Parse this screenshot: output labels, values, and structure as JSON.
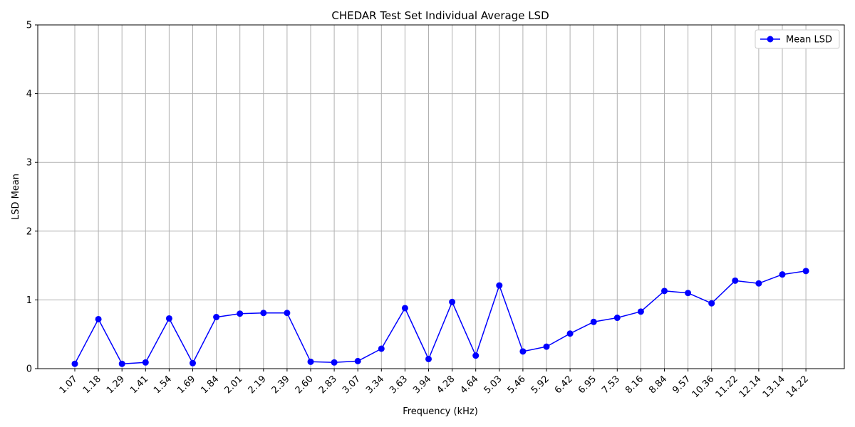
{
  "chart_data": {
    "type": "line",
    "title": "CHEDAR Test Set Individual Average LSD",
    "xlabel": "Frequency (kHz)",
    "ylabel": "LSD Mean",
    "categories": [
      "1.07",
      "1.18",
      "1.29",
      "1.41",
      "1.54",
      "1.69",
      "1.84",
      "2.01",
      "2.19",
      "2.39",
      "2.60",
      "2.83",
      "3.07",
      "3.34",
      "3.63",
      "3.94",
      "4.28",
      "4.64",
      "5.03",
      "5.46",
      "5.92",
      "6.42",
      "6.95",
      "7.53",
      "8.16",
      "8.84",
      "9.57",
      "10.36",
      "11.22",
      "12.14",
      "13.14",
      "14.22"
    ],
    "series": [
      {
        "name": "Mean LSD",
        "color": "#0000ff",
        "marker": "circle",
        "values": [
          0.07,
          0.72,
          0.07,
          0.09,
          0.73,
          0.08,
          0.75,
          0.8,
          0.81,
          0.81,
          0.1,
          0.09,
          0.11,
          0.29,
          0.88,
          0.14,
          0.97,
          0.19,
          1.21,
          0.25,
          0.32,
          0.51,
          0.68,
          0.74,
          0.83,
          1.13,
          1.1,
          0.95,
          1.28,
          1.24,
          1.37,
          1.42
        ]
      }
    ],
    "ylim": [
      0,
      5
    ],
    "yticks": [
      0,
      1,
      2,
      3,
      4,
      5
    ],
    "grid": true,
    "legend_position": "top-right",
    "x_tick_rotation": 45
  }
}
